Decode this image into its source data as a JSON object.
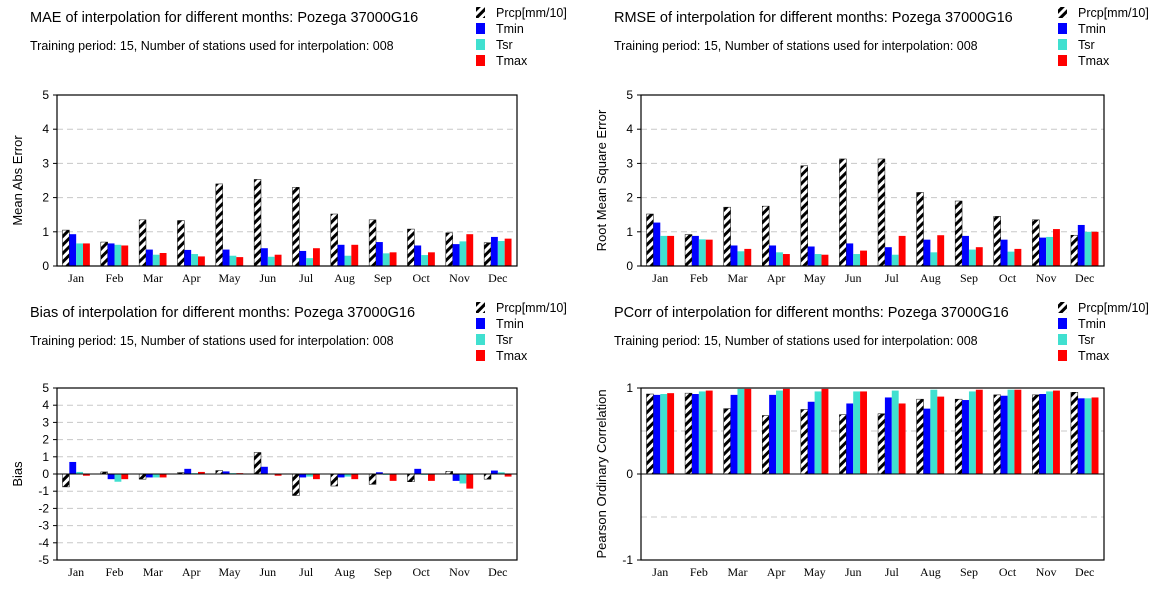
{
  "colors": {
    "prcp_stripe": "#000000",
    "tmin": "#0000ff",
    "tsr": "#40e0d0",
    "tmax": "#ff0000",
    "grid": "#c8c8c8"
  },
  "chart_data": [
    {
      "id": "mae",
      "type": "bar",
      "title": "MAE of interpolation for different months: Pozega  37000G16",
      "subtitle": "Training period: 15, Number of stations used for interpolation: 008",
      "ylabel": "Mean Abs Error",
      "ylim": [
        0,
        5
      ],
      "yticks": [
        "0",
        "1",
        "2",
        "3",
        "4",
        "5"
      ],
      "ytick_values": [
        0,
        1,
        2,
        3,
        4,
        5
      ],
      "grid": true,
      "legend_position": "top-right",
      "categories": [
        "Jan",
        "Feb",
        "Mar",
        "Apr",
        "May",
        "Jun",
        "Jul",
        "Aug",
        "Sep",
        "Oct",
        "Nov",
        "Dec"
      ],
      "series": [
        {
          "name": "Prcp[mm/10]",
          "values": [
            1.05,
            0.7,
            1.35,
            1.33,
            2.4,
            2.53,
            2.3,
            1.52,
            1.35,
            1.08,
            0.97,
            0.68
          ]
        },
        {
          "name": "Tmin",
          "values": [
            0.93,
            0.66,
            0.48,
            0.47,
            0.48,
            0.52,
            0.44,
            0.62,
            0.7,
            0.6,
            0.64,
            0.85
          ]
        },
        {
          "name": "Tsr",
          "values": [
            0.66,
            0.62,
            0.33,
            0.35,
            0.3,
            0.27,
            0.23,
            0.3,
            0.37,
            0.32,
            0.72,
            0.73
          ]
        },
        {
          "name": "Tmax",
          "values": [
            0.66,
            0.6,
            0.38,
            0.28,
            0.26,
            0.33,
            0.52,
            0.62,
            0.4,
            0.4,
            0.93,
            0.8
          ]
        }
      ]
    },
    {
      "id": "rmse",
      "type": "bar",
      "title": "RMSE of interpolation for different months: Pozega  37000G16",
      "subtitle": "Training period: 15, Number of stations used for interpolation: 008",
      "ylabel": "Root Mean Square Error",
      "ylim": [
        0,
        5
      ],
      "yticks": [
        "0",
        "1",
        "2",
        "3",
        "4",
        "5"
      ],
      "ytick_values": [
        0,
        1,
        2,
        3,
        4,
        5
      ],
      "grid": true,
      "legend_position": "top-right",
      "categories": [
        "Jan",
        "Feb",
        "Mar",
        "Apr",
        "May",
        "Jun",
        "Jul",
        "Aug",
        "Sep",
        "Oct",
        "Nov",
        "Dec"
      ],
      "series": [
        {
          "name": "Prcp[mm/10]",
          "values": [
            1.52,
            0.92,
            1.72,
            1.75,
            2.93,
            3.13,
            3.13,
            2.15,
            1.9,
            1.45,
            1.35,
            0.9
          ]
        },
        {
          "name": "Tmin",
          "values": [
            1.27,
            0.88,
            0.6,
            0.6,
            0.57,
            0.66,
            0.55,
            0.77,
            0.88,
            0.77,
            0.83,
            1.2
          ]
        },
        {
          "name": "Tsr",
          "values": [
            0.88,
            0.78,
            0.43,
            0.4,
            0.35,
            0.35,
            0.33,
            0.4,
            0.48,
            0.42,
            0.85,
            1.0
          ]
        },
        {
          "name": "Tmax",
          "values": [
            0.88,
            0.77,
            0.5,
            0.35,
            0.33,
            0.45,
            0.88,
            0.9,
            0.55,
            0.5,
            1.08,
            1.0
          ]
        }
      ]
    },
    {
      "id": "bias",
      "type": "bar",
      "title": "Bias of interpolation for different months: Pozega  37000G16",
      "subtitle": "Training period: 15, Number of stations used for interpolation: 008",
      "ylabel": "Bias",
      "ylim": [
        -5,
        5
      ],
      "yticks": [
        "-5",
        "-4",
        "-3",
        "-2",
        "-1",
        "0",
        "1",
        "2",
        "3",
        "4",
        "5"
      ],
      "ytick_values": [
        -5,
        -4,
        -3,
        -2,
        -1,
        0,
        1,
        2,
        3,
        4,
        5
      ],
      "grid": true,
      "legend_position": "top-right",
      "categories": [
        "Jan",
        "Feb",
        "Mar",
        "Apr",
        "May",
        "Jun",
        "Jul",
        "Aug",
        "Sep",
        "Oct",
        "Nov",
        "Dec"
      ],
      "series": [
        {
          "name": "Prcp[mm/10]",
          "values": [
            -0.75,
            0.12,
            -0.3,
            0.08,
            0.2,
            1.25,
            -1.25,
            -0.7,
            -0.6,
            -0.45,
            0.15,
            -0.3
          ]
        },
        {
          "name": "Tmin",
          "values": [
            0.7,
            -0.3,
            -0.2,
            0.3,
            0.15,
            0.42,
            -0.2,
            -0.2,
            0.1,
            0.3,
            -0.4,
            0.2
          ]
        },
        {
          "name": "Tsr",
          "values": [
            0.12,
            -0.45,
            -0.2,
            0.05,
            0.05,
            0.03,
            -0.15,
            -0.15,
            -0.05,
            -0.05,
            -0.55,
            0.1
          ]
        },
        {
          "name": "Tmax",
          "values": [
            -0.1,
            -0.3,
            -0.2,
            0.12,
            0.05,
            -0.1,
            -0.3,
            -0.3,
            -0.4,
            -0.4,
            -0.85,
            -0.15
          ]
        }
      ]
    },
    {
      "id": "pcorr",
      "type": "bar",
      "title": "PCorr of interpolation for different months: Pozega  37000G16",
      "subtitle": "Training period: 15, Number of stations used for interpolation: 008",
      "ylabel": "Pearson Ordinary Correlation",
      "ylim": [
        -1,
        1
      ],
      "yticks": [
        "-1",
        "0",
        "1"
      ],
      "ytick_values": [
        -1,
        0,
        1
      ],
      "gridlines": [
        -0.5,
        0.5
      ],
      "grid": true,
      "legend_position": "top-right",
      "categories": [
        "Jan",
        "Feb",
        "Mar",
        "Apr",
        "May",
        "Jun",
        "Jul",
        "Aug",
        "Sep",
        "Oct",
        "Nov",
        "Dec"
      ],
      "series": [
        {
          "name": "Prcp[mm/10]",
          "values": [
            0.93,
            0.94,
            0.76,
            0.68,
            0.75,
            0.69,
            0.7,
            0.87,
            0.87,
            0.92,
            0.92,
            0.95
          ]
        },
        {
          "name": "Tmin",
          "values": [
            0.92,
            0.93,
            0.92,
            0.92,
            0.84,
            0.82,
            0.89,
            0.76,
            0.86,
            0.91,
            0.93,
            0.88
          ]
        },
        {
          "name": "Tsr",
          "values": [
            0.93,
            0.96,
            0.99,
            0.97,
            0.96,
            0.96,
            0.97,
            0.98,
            0.96,
            0.98,
            0.96,
            0.88
          ]
        },
        {
          "name": "Tmax",
          "values": [
            0.94,
            0.97,
            0.99,
            0.99,
            0.99,
            0.96,
            0.82,
            0.9,
            0.98,
            0.98,
            0.97,
            0.89
          ]
        }
      ]
    }
  ]
}
